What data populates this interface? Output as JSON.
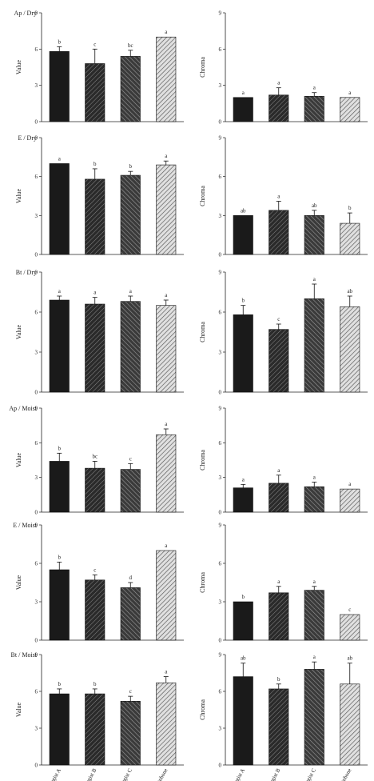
{
  "pattern_colors": {
    "dark": "#1a1a1a",
    "stripe_mid": "#3a3a3a",
    "stripe_light": "#6a6a6a",
    "bg_light": "#d8d8d8"
  },
  "chart_data": [
    {
      "type": "bar",
      "panel_label": "Ap / Dry",
      "ylabel": "Value",
      "yticks": [
        "0",
        "3",
        "6",
        "9"
      ],
      "ylim": [
        0,
        9
      ],
      "categories": [
        "Pedologist A",
        "Pedologist B",
        "Pedologist C",
        "Smartphone"
      ],
      "values": [
        5.8,
        4.8,
        5.4,
        7.0
      ],
      "errors": [
        0.4,
        1.2,
        0.5,
        0
      ],
      "sig": [
        "b",
        "c",
        "bc",
        "a"
      ]
    },
    {
      "type": "bar",
      "panel_label": "",
      "ylabel": "Chroma",
      "yticks": [
        "0",
        "3",
        "6",
        "9"
      ],
      "ylim": [
        0,
        9
      ],
      "categories": [
        "Pedologist A",
        "Pedologist B",
        "Pedologist C",
        "Smartphone"
      ],
      "values": [
        2.0,
        2.2,
        2.1,
        2.0
      ],
      "errors": [
        0,
        0.6,
        0.3,
        0
      ],
      "sig": [
        "a",
        "a",
        "a",
        "a"
      ]
    },
    {
      "type": "bar",
      "panel_label": "E / Dry",
      "ylabel": "Value",
      "yticks": [
        "0",
        "3",
        "6",
        "9"
      ],
      "ylim": [
        0,
        9
      ],
      "categories": [
        "Pedologist A",
        "Pedologist B",
        "Pedologist C",
        "Smartphone"
      ],
      "values": [
        7.0,
        5.8,
        6.1,
        6.9
      ],
      "errors": [
        0,
        0.8,
        0.3,
        0.3
      ],
      "sig": [
        "a",
        "b",
        "b",
        "a"
      ]
    },
    {
      "type": "bar",
      "panel_label": "",
      "ylabel": "Chroma",
      "yticks": [
        "0",
        "3",
        "6",
        "9"
      ],
      "ylim": [
        0,
        9
      ],
      "categories": [
        "Pedologist A",
        "Pedologist B",
        "Pedologist C",
        "Smartphone"
      ],
      "values": [
        3.0,
        3.4,
        3.0,
        2.4
      ],
      "errors": [
        0,
        0.7,
        0.4,
        0.8
      ],
      "sig": [
        "ab",
        "a",
        "ab",
        "b"
      ]
    },
    {
      "type": "bar",
      "panel_label": "Bt / Dry",
      "ylabel": "Value",
      "yticks": [
        "0",
        "3",
        "6",
        "9"
      ],
      "ylim": [
        0,
        9
      ],
      "categories": [
        "Pedologist A",
        "Pedologist B",
        "Pedologist C",
        "Smartphone"
      ],
      "values": [
        6.9,
        6.6,
        6.8,
        6.5
      ],
      "errors": [
        0.3,
        0.5,
        0.4,
        0.4
      ],
      "sig": [
        "a",
        "a",
        "a",
        "a"
      ]
    },
    {
      "type": "bar",
      "panel_label": "",
      "ylabel": "Chroma",
      "yticks": [
        "0",
        "3",
        "6",
        "9"
      ],
      "ylim": [
        0,
        9
      ],
      "categories": [
        "Pedologist A",
        "Pedologist B",
        "Pedologist C",
        "Smartphone"
      ],
      "values": [
        5.8,
        4.7,
        7.0,
        6.4
      ],
      "errors": [
        0.7,
        0.4,
        1.1,
        0.8
      ],
      "sig": [
        "b",
        "c",
        "a",
        "ab"
      ]
    },
    {
      "type": "bar",
      "panel_label": "Ap / Moist",
      "ylabel": "Value",
      "yticks": [
        "0",
        "3",
        "6",
        "9"
      ],
      "ylim": [
        0,
        9
      ],
      "categories": [
        "Pedologist A",
        "Pedologist B",
        "Pedologist C",
        "Smartphone"
      ],
      "values": [
        4.4,
        3.8,
        3.7,
        6.7
      ],
      "errors": [
        0.7,
        0.6,
        0.5,
        0.5
      ],
      "sig": [
        "b",
        "bc",
        "c",
        "a"
      ]
    },
    {
      "type": "bar",
      "panel_label": "",
      "ylabel": "Chroma",
      "yticks": [
        "0",
        "3",
        "6",
        "9"
      ],
      "ylim": [
        0,
        9
      ],
      "categories": [
        "Pedologist A",
        "Pedologist B",
        "Pedologist C",
        "Smartphone"
      ],
      "values": [
        2.1,
        2.5,
        2.2,
        2.0
      ],
      "errors": [
        0.3,
        0.7,
        0.4,
        0
      ],
      "sig": [
        "a",
        "a",
        "a",
        "a"
      ]
    },
    {
      "type": "bar",
      "panel_label": "E / Moist",
      "ylabel": "Value",
      "yticks": [
        "0",
        "3",
        "6",
        "9"
      ],
      "ylim": [
        0,
        9
      ],
      "categories": [
        "Pedologist A",
        "Pedologist B",
        "Pedologist C",
        "Smartphone"
      ],
      "values": [
        5.5,
        4.7,
        4.1,
        7.0
      ],
      "errors": [
        0.6,
        0.4,
        0.4,
        0
      ],
      "sig": [
        "b",
        "c",
        "d",
        "a"
      ]
    },
    {
      "type": "bar",
      "panel_label": "",
      "ylabel": "Chroma",
      "yticks": [
        "0",
        "3",
        "6",
        "9"
      ],
      "ylim": [
        0,
        9
      ],
      "categories": [
        "Pedologist A",
        "Pedologist B",
        "Pedologist C",
        "Smartphone"
      ],
      "values": [
        3.0,
        3.7,
        3.9,
        2.0
      ],
      "errors": [
        0,
        0.5,
        0.3,
        0
      ],
      "sig": [
        "b",
        "a",
        "a",
        "c"
      ]
    },
    {
      "type": "bar",
      "panel_label": "Bt / Moist",
      "ylabel": "Value",
      "yticks": [
        "0",
        "3",
        "6",
        "9"
      ],
      "ylim": [
        0,
        9
      ],
      "categories": [
        "Pedologist A",
        "Pedologist B",
        "Pedologist C",
        "Smartphone"
      ],
      "values": [
        5.8,
        5.8,
        5.2,
        6.7
      ],
      "errors": [
        0.4,
        0.4,
        0.4,
        0.5
      ],
      "sig": [
        "b",
        "b",
        "c",
        "a"
      ],
      "xcat_labels": [
        "Pedologist A",
        "Pedologist B",
        "Pedologist C",
        "Smartphone"
      ]
    },
    {
      "type": "bar",
      "panel_label": "",
      "ylabel": "Chroma",
      "yticks": [
        "0",
        "3",
        "6",
        "9"
      ],
      "ylim": [
        0,
        9
      ],
      "categories": [
        "Pedologist A",
        "Pedologist B",
        "Pedologist C",
        "Smartphone"
      ],
      "values": [
        7.2,
        6.2,
        7.8,
        6.6
      ],
      "errors": [
        1.1,
        0.4,
        0.6,
        1.7
      ],
      "sig": [
        "ab",
        "b",
        "a",
        "ab"
      ],
      "xcat_labels": [
        "Pedologist A",
        "Pedologist B",
        "Pedologist C",
        "Smartphone"
      ]
    }
  ]
}
